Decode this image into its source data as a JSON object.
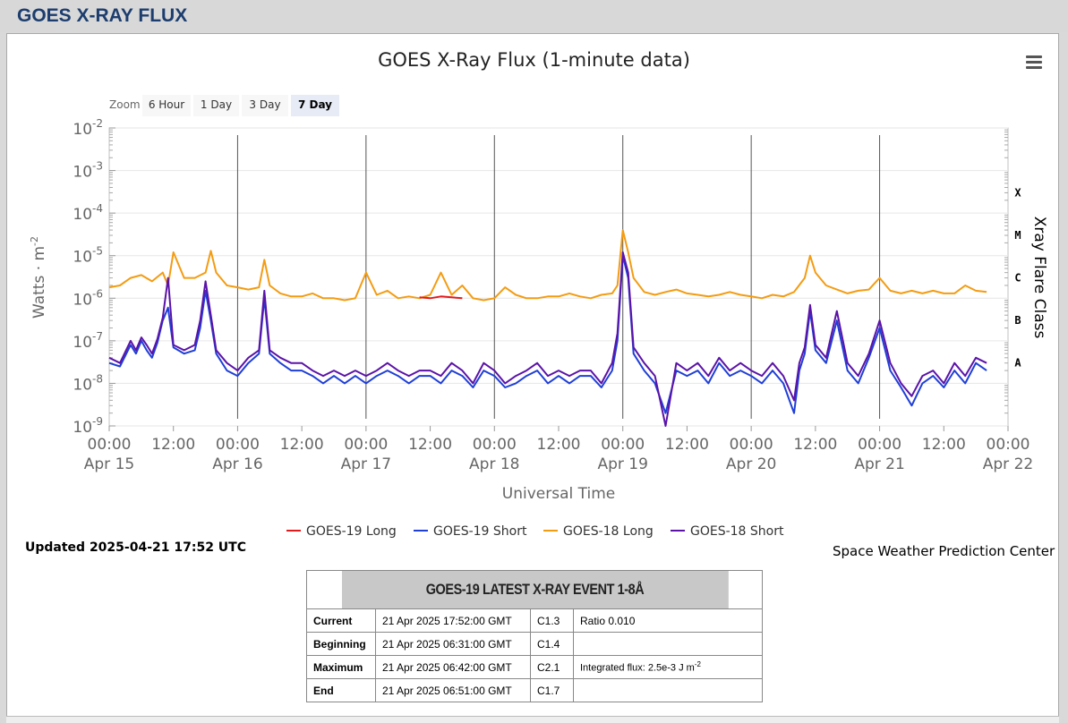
{
  "header": {
    "title": "GOES X-RAY FLUX"
  },
  "chart_data": {
    "type": "line",
    "title": "GOES X-Ray Flux (1-minute data)",
    "xlabel": "Universal Time",
    "ylabel": "Watts · m",
    "ylabel_sup": "-2",
    "right_axis_label": "Xray Flare Class",
    "y_scale": "log",
    "ylim": [
      1e-09,
      0.01
    ],
    "y_ticks": [
      {
        "base": "10",
        "exp": "-2",
        "value": 0.01
      },
      {
        "base": "10",
        "exp": "-3",
        "value": 0.001
      },
      {
        "base": "10",
        "exp": "-4",
        "value": 0.0001
      },
      {
        "base": "10",
        "exp": "-5",
        "value": 1e-05
      },
      {
        "base": "10",
        "exp": "-6",
        "value": 1e-06
      },
      {
        "base": "10",
        "exp": "-7",
        "value": 1e-07
      },
      {
        "base": "10",
        "exp": "-8",
        "value": 1e-08
      },
      {
        "base": "10",
        "exp": "-9",
        "value": 1e-09
      }
    ],
    "flare_classes": [
      {
        "label": "X",
        "value": 0.0003
      },
      {
        "label": "M",
        "value": 3e-05
      },
      {
        "label": "C",
        "value": 3e-06
      },
      {
        "label": "B",
        "value": 3e-07
      },
      {
        "label": "A",
        "value": 3e-08
      }
    ],
    "x_ticks": [
      {
        "time": "00:00",
        "date": "Apr 15",
        "hour": 0
      },
      {
        "time": "12:00",
        "date": "",
        "hour": 12
      },
      {
        "time": "00:00",
        "date": "Apr 16",
        "hour": 24
      },
      {
        "time": "12:00",
        "date": "",
        "hour": 36
      },
      {
        "time": "00:00",
        "date": "Apr 17",
        "hour": 48
      },
      {
        "time": "12:00",
        "date": "",
        "hour": 60
      },
      {
        "time": "00:00",
        "date": "Apr 18",
        "hour": 72
      },
      {
        "time": "12:00",
        "date": "",
        "hour": 84
      },
      {
        "time": "00:00",
        "date": "Apr 19",
        "hour": 96
      },
      {
        "time": "12:00",
        "date": "",
        "hour": 108
      },
      {
        "time": "00:00",
        "date": "Apr 20",
        "hour": 120
      },
      {
        "time": "12:00",
        "date": "",
        "hour": 132
      },
      {
        "time": "00:00",
        "date": "Apr 21",
        "hour": 144
      },
      {
        "time": "12:00",
        "date": "",
        "hour": 156
      },
      {
        "time": "00:00",
        "date": "Apr 22",
        "hour": 168
      }
    ],
    "xlim_hours": [
      0,
      168
    ],
    "grid": true,
    "legend_position": "bottom-center",
    "series": [
      {
        "name": "GOES-19 Long",
        "color": "#e31a1c",
        "x": [
          58,
          60,
          62,
          64,
          66
        ],
        "y": [
          1.05e-06,
          1e-06,
          1.1e-06,
          1.05e-06,
          1e-06
        ]
      },
      {
        "name": "GOES-19 Short",
        "color": "#1f3fd6",
        "x": [
          0,
          2,
          4,
          5,
          6,
          7,
          8,
          9,
          10,
          11,
          12,
          14,
          16,
          17,
          18,
          19,
          20,
          22,
          24,
          26,
          28,
          29,
          30,
          32,
          34,
          36,
          38,
          40,
          42,
          44,
          46,
          48,
          50,
          52,
          54,
          56,
          58,
          60,
          62,
          64,
          66,
          68,
          70,
          72,
          74,
          76,
          78,
          80,
          82,
          84,
          86,
          88,
          90,
          92,
          94,
          95,
          96,
          97,
          98,
          100,
          102,
          104,
          106,
          108,
          110,
          112,
          114,
          116,
          118,
          120,
          122,
          124,
          126,
          128,
          129,
          130,
          131,
          132,
          134,
          136,
          138,
          140,
          142,
          144,
          146,
          148,
          150,
          152,
          154,
          156,
          158,
          160,
          162,
          164
        ],
        "y": [
          3e-08,
          2.5e-08,
          8e-08,
          5e-08,
          1e-07,
          6e-08,
          4e-08,
          9e-08,
          3e-07,
          6e-07,
          7e-08,
          5e-08,
          6e-08,
          2e-07,
          1.5e-06,
          3e-07,
          5e-08,
          2e-08,
          1.5e-08,
          3e-08,
          5e-08,
          1e-06,
          5e-08,
          3e-08,
          2e-08,
          2e-08,
          1.5e-08,
          1e-08,
          1.5e-08,
          1e-08,
          1.5e-08,
          1e-08,
          1.5e-08,
          2e-08,
          1.5e-08,
          1e-08,
          1.5e-08,
          1.5e-08,
          1e-08,
          2e-08,
          1.5e-08,
          8e-09,
          2e-08,
          1.5e-08,
          8e-09,
          1e-08,
          1.5e-08,
          2e-08,
          1e-08,
          1.5e-08,
          1e-08,
          1.5e-08,
          1.5e-08,
          8e-09,
          2e-08,
          1e-07,
          1e-05,
          3e-06,
          5e-08,
          2e-08,
          1e-08,
          2e-09,
          2e-08,
          1.5e-08,
          2e-08,
          1e-08,
          3e-08,
          1.5e-08,
          2e-08,
          1.5e-08,
          1e-08,
          2e-08,
          1e-08,
          2e-09,
          2e-08,
          5e-08,
          5e-07,
          6e-08,
          3e-08,
          3e-07,
          2e-08,
          1e-08,
          4e-08,
          2e-07,
          2e-08,
          8e-09,
          3e-09,
          1e-08,
          1.5e-08,
          8e-09,
          2e-08,
          1e-08,
          3e-08,
          2e-08
        ]
      },
      {
        "name": "GOES-18 Long",
        "color": "#f39c12",
        "x": [
          0,
          2,
          4,
          6,
          8,
          10,
          11,
          12,
          14,
          16,
          18,
          19,
          20,
          22,
          24,
          26,
          28,
          29,
          30,
          32,
          34,
          36,
          38,
          40,
          42,
          44,
          46,
          48,
          50,
          52,
          54,
          56,
          58,
          60,
          62,
          64,
          66,
          68,
          70,
          72,
          74,
          76,
          78,
          80,
          82,
          84,
          86,
          88,
          90,
          92,
          94,
          95,
          96,
          97,
          98,
          100,
          102,
          104,
          106,
          108,
          110,
          112,
          114,
          116,
          118,
          120,
          122,
          124,
          126,
          128,
          130,
          131,
          132,
          134,
          136,
          138,
          140,
          142,
          144,
          146,
          148,
          150,
          152,
          154,
          156,
          158,
          160,
          162,
          164
        ],
        "y": [
          1.8e-06,
          2e-06,
          3e-06,
          3.5e-06,
          2.5e-06,
          4e-06,
          2e-06,
          1.2e-05,
          3e-06,
          3e-06,
          4e-06,
          1.3e-05,
          4e-06,
          2e-06,
          1.8e-06,
          1.6e-06,
          1.8e-06,
          8e-06,
          2e-06,
          1.3e-06,
          1.1e-06,
          1.1e-06,
          1.3e-06,
          1e-06,
          1e-06,
          9e-07,
          1e-06,
          4e-06,
          1.2e-06,
          1.5e-06,
          1e-06,
          1.1e-06,
          1e-06,
          1.2e-06,
          4e-06,
          1.2e-06,
          2e-06,
          1e-06,
          9e-07,
          1e-06,
          1.8e-06,
          1.2e-06,
          1e-06,
          1e-06,
          1.1e-06,
          1.1e-06,
          1.3e-06,
          1.1e-06,
          1e-06,
          1.2e-06,
          1.3e-06,
          2e-06,
          4e-05,
          1.2e-05,
          3e-06,
          1.4e-06,
          1.2e-06,
          1.4e-06,
          1.6e-06,
          1.3e-06,
          1.2e-06,
          1.1e-06,
          1.2e-06,
          1.4e-06,
          1.2e-06,
          1.1e-06,
          1e-06,
          1.2e-06,
          1.1e-06,
          1.4e-06,
          3e-06,
          1e-05,
          4e-06,
          2e-06,
          1.6e-06,
          1.3e-06,
          1.5e-06,
          1.6e-06,
          3e-06,
          1.5e-06,
          1.3e-06,
          1.5e-06,
          1.3e-06,
          1.5e-06,
          1.3e-06,
          1.3e-06,
          2e-06,
          1.5e-06,
          1.4e-06
        ]
      },
      {
        "name": "GOES-18 Short",
        "color": "#5b13a8",
        "x": [
          0,
          2,
          4,
          5,
          6,
          7,
          8,
          9,
          10,
          11,
          12,
          14,
          16,
          17,
          18,
          19,
          20,
          22,
          24,
          26,
          28,
          29,
          30,
          32,
          34,
          36,
          38,
          40,
          42,
          44,
          46,
          48,
          50,
          52,
          54,
          56,
          58,
          60,
          62,
          64,
          66,
          68,
          70,
          72,
          74,
          76,
          78,
          80,
          82,
          84,
          86,
          88,
          90,
          92,
          94,
          95,
          96,
          97,
          98,
          100,
          102,
          104,
          106,
          108,
          110,
          112,
          114,
          116,
          118,
          120,
          122,
          124,
          126,
          128,
          129,
          130,
          131,
          132,
          134,
          136,
          138,
          140,
          142,
          144,
          146,
          148,
          150,
          152,
          154,
          156,
          158,
          160,
          162,
          164
        ],
        "y": [
          4e-08,
          3e-08,
          1e-07,
          6e-08,
          1.2e-07,
          8e-08,
          5e-08,
          1.1e-07,
          3.5e-07,
          3e-06,
          8e-08,
          6e-08,
          8e-08,
          3e-07,
          2.5e-06,
          4e-07,
          6e-08,
          3e-08,
          2e-08,
          4e-08,
          6e-08,
          1.5e-06,
          6e-08,
          4e-08,
          3e-08,
          3e-08,
          2e-08,
          1.5e-08,
          2e-08,
          1.5e-08,
          2e-08,
          1.5e-08,
          2e-08,
          3e-08,
          2e-08,
          1.5e-08,
          2e-08,
          2e-08,
          1.5e-08,
          3e-08,
          2e-08,
          1e-08,
          3e-08,
          2e-08,
          1e-08,
          1.5e-08,
          2e-08,
          3e-08,
          1.5e-08,
          2e-08,
          1.5e-08,
          2e-08,
          2e-08,
          1e-08,
          3e-08,
          1.5e-07,
          1.2e-05,
          4e-06,
          7e-08,
          3e-08,
          1.5e-08,
          1e-09,
          3e-08,
          2e-08,
          3e-08,
          1.5e-08,
          4e-08,
          2e-08,
          3e-08,
          2e-08,
          1.5e-08,
          3e-08,
          1.5e-08,
          4e-09,
          3e-08,
          7e-08,
          7e-07,
          8e-08,
          4e-08,
          5e-07,
          3e-08,
          1.5e-08,
          5e-08,
          3e-07,
          3e-08,
          1e-08,
          5e-09,
          1.5e-08,
          2e-08,
          1e-08,
          3e-08,
          1.5e-08,
          4e-08,
          3e-08
        ]
      }
    ]
  },
  "zoom": {
    "label": "Zoom",
    "buttons": [
      {
        "label": "6 Hour",
        "active": false
      },
      {
        "label": "1 Day",
        "active": false
      },
      {
        "label": "3 Day",
        "active": false
      },
      {
        "label": "7 Day",
        "active": true
      }
    ]
  },
  "updated_text": "Updated 2025-04-21 17:52 UTC",
  "credit_text": "Space Weather Prediction Center",
  "event_table": {
    "title": "GOES-19 LATEST X-RAY EVENT 1-8Å",
    "rows": [
      {
        "label": "Current",
        "time": "21 Apr 2025 17:52:00 GMT",
        "class": "C1.3",
        "extra": "Ratio 0.010",
        "extra_sup": ""
      },
      {
        "label": "Beginning",
        "time": "21 Apr 2025 06:31:00 GMT",
        "class": "C1.4",
        "extra": "",
        "extra_sup": ""
      },
      {
        "label": "Maximum",
        "time": "21 Apr 2025 06:42:00 GMT",
        "class": "C2.1",
        "extra": "Integrated flux: 2.5e-3 J m",
        "extra_sup": "-2"
      },
      {
        "label": "End",
        "time": "21 Apr 2025 06:51:00 GMT",
        "class": "C1.7",
        "extra": "",
        "extra_sup": ""
      }
    ]
  }
}
